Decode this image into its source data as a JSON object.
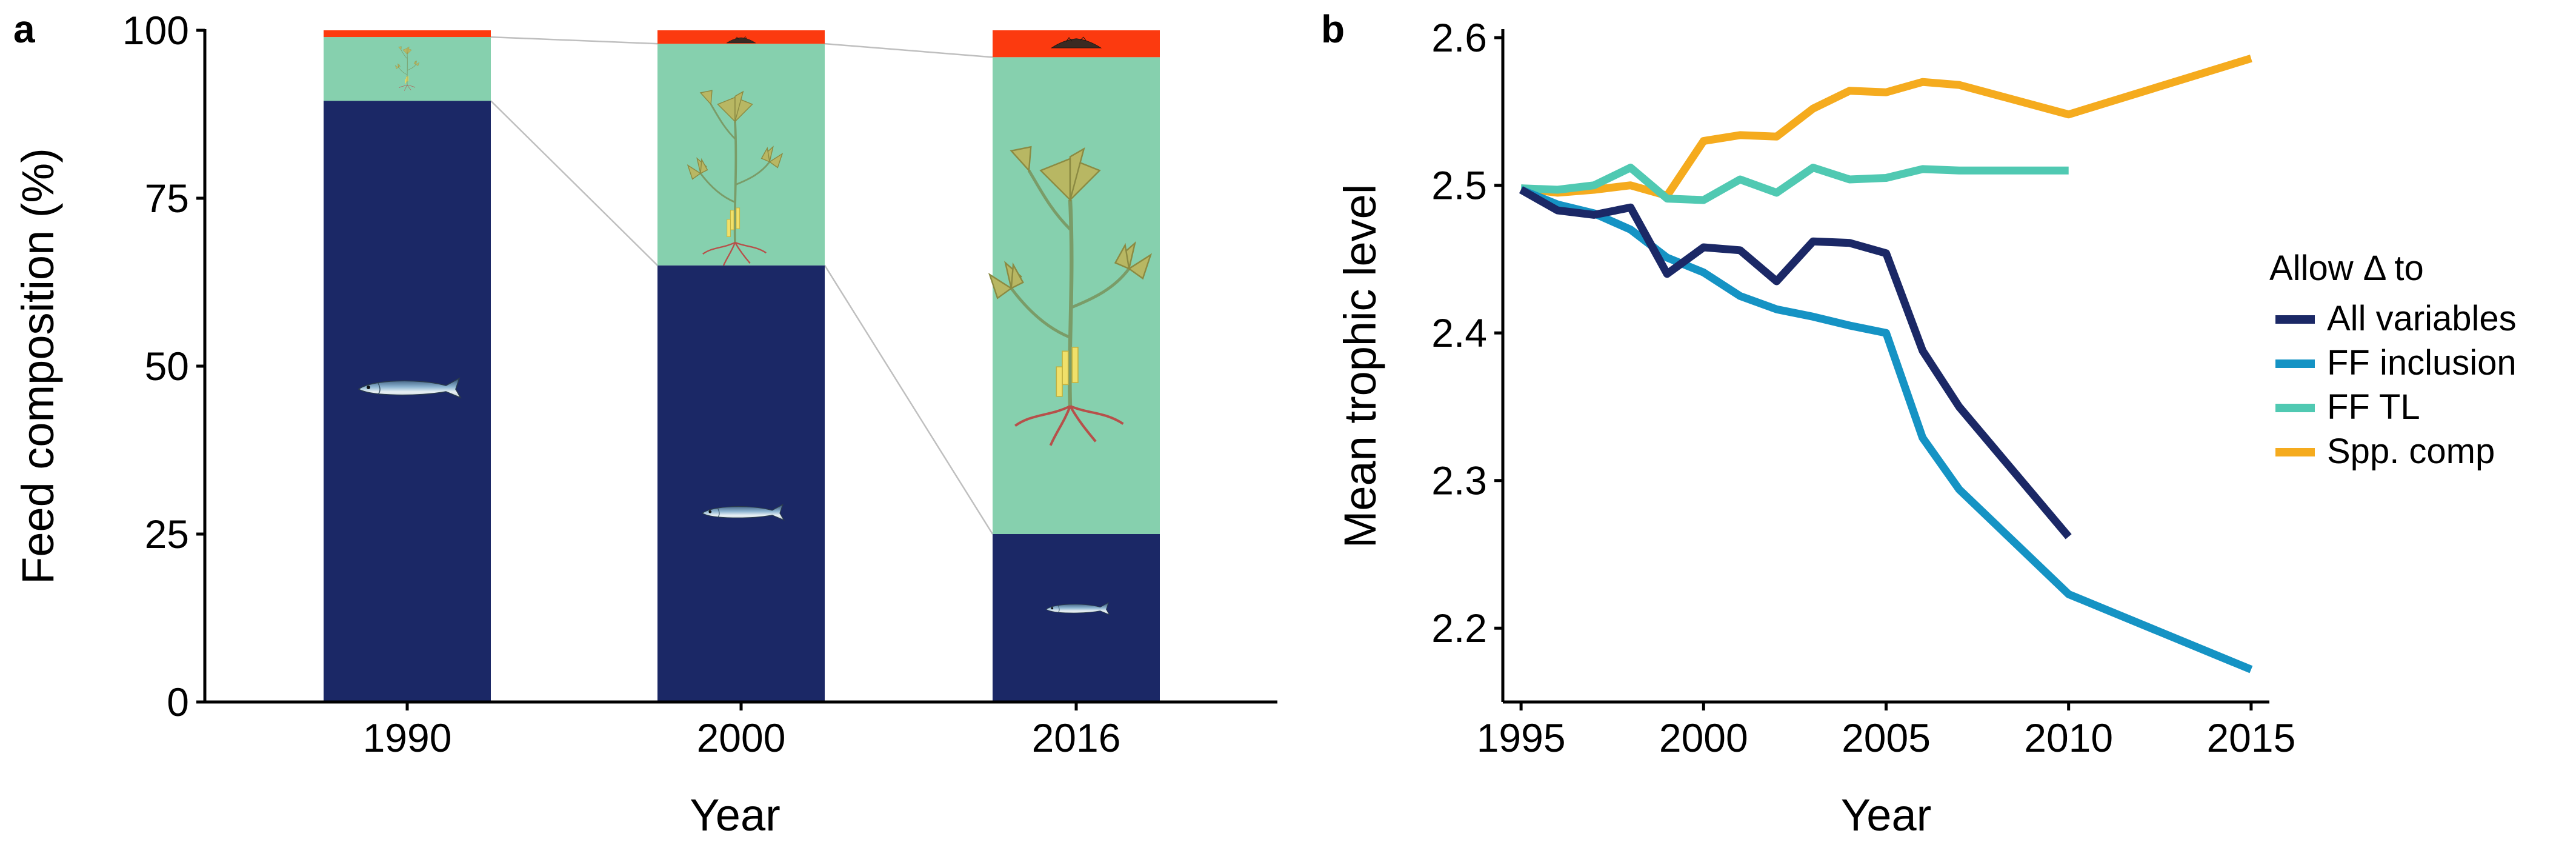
{
  "figure": {
    "panel_a_letter": "a",
    "panel_b_letter": "b"
  },
  "colors": {
    "fish": "#1b2866",
    "plant": "#86d0ae",
    "other": "#fc3a0f",
    "all_variables": "#1b2866",
    "ff_inclusion": "#1593c4",
    "ff_tl": "#50c9b2",
    "spp_comp": "#f5ab1e"
  },
  "chart_data": [
    {
      "type": "bar",
      "stacked": true,
      "categories": [
        "1990",
        "2000",
        "2016"
      ],
      "series": [
        {
          "key": "fish",
          "values": [
            89.5,
            65,
            25
          ]
        },
        {
          "key": "plant",
          "values": [
            9.5,
            33,
            71
          ]
        },
        {
          "key": "other",
          "values": [
            1,
            2,
            4
          ]
        }
      ],
      "xlabel": "Year",
      "ylabel": "Feed composition (%)",
      "ylim": [
        0,
        100
      ],
      "yticks": [
        "0",
        "25",
        "50",
        "75",
        "100"
      ],
      "connectors": true,
      "icons": [
        "fish-icon",
        "plant-icon",
        "soil-pile-icon"
      ]
    },
    {
      "type": "line",
      "xlabel": "Year",
      "ylabel": "Mean trophic level",
      "xlim": [
        1994.5,
        2015.5
      ],
      "ylim": [
        2.15,
        2.605
      ],
      "xticks": [
        "1995",
        "2000",
        "2005",
        "2010",
        "2015"
      ],
      "yticks": [
        "2.2",
        "2.3",
        "2.4",
        "2.5",
        "2.6"
      ],
      "legend": {
        "title": "Allow Δ to",
        "position": "right"
      },
      "series": [
        {
          "key": "all_variables",
          "name": "All variables",
          "x": [
            1995,
            1996,
            1997,
            1998,
            1999,
            2000,
            2001,
            2002,
            2003,
            2004,
            2005,
            2006,
            2007,
            2010
          ],
          "y": [
            2.497,
            2.483,
            2.48,
            2.485,
            2.44,
            2.458,
            2.456,
            2.435,
            2.462,
            2.461,
            2.454,
            2.388,
            2.35,
            2.262
          ]
        },
        {
          "key": "ff_inclusion",
          "name": "FF inclusion",
          "x": [
            1995,
            1996,
            1997,
            1998,
            1999,
            2000,
            2001,
            2002,
            2003,
            2004,
            2005,
            2006,
            2007,
            2010,
            2015
          ],
          "y": [
            2.497,
            2.487,
            2.481,
            2.47,
            2.451,
            2.441,
            2.425,
            2.416,
            2.411,
            2.405,
            2.4,
            2.329,
            2.294,
            2.223,
            2.172
          ]
        },
        {
          "key": "ff_tl",
          "name": "FF TL",
          "x": [
            1995,
            1996,
            1997,
            1998,
            1999,
            2000,
            2001,
            2002,
            2003,
            2004,
            2005,
            2006,
            2007,
            2008,
            2009,
            2010
          ],
          "y": [
            2.498,
            2.497,
            2.5,
            2.512,
            2.491,
            2.49,
            2.504,
            2.495,
            2.512,
            2.504,
            2.505,
            2.511,
            2.51,
            2.51,
            2.51,
            2.51
          ]
        },
        {
          "key": "spp_comp",
          "name": "Spp. comp",
          "x": [
            1995,
            1996,
            1997,
            1998,
            1999,
            2000,
            2001,
            2002,
            2003,
            2004,
            2005,
            2006,
            2007,
            2010,
            2015
          ],
          "y": [
            2.498,
            2.495,
            2.497,
            2.5,
            2.493,
            2.53,
            2.534,
            2.533,
            2.552,
            2.564,
            2.563,
            2.57,
            2.568,
            2.548,
            2.586
          ]
        }
      ]
    }
  ]
}
